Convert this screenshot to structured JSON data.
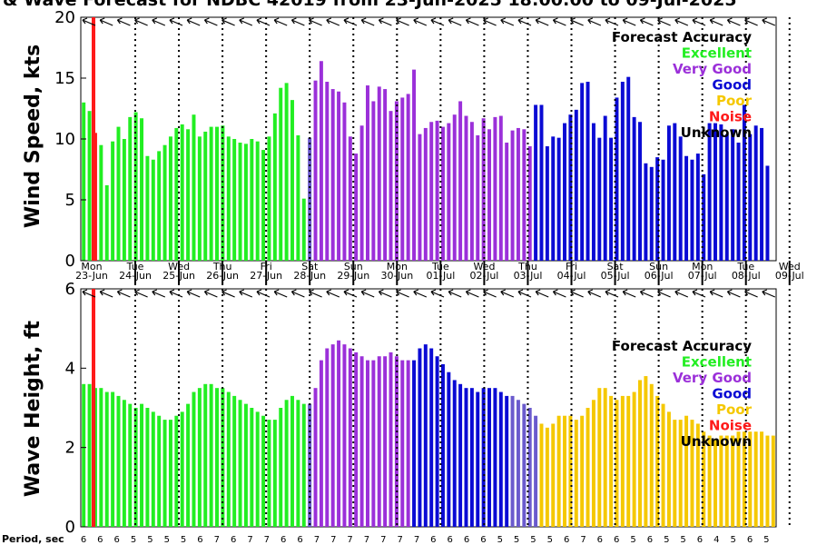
{
  "colors": {
    "excellent": "#22ee22",
    "very_good": "#9b30d9",
    "good": "#0a0ad4",
    "poor": "#f5c800",
    "noise": "#ff1a1a",
    "unknown": "#000000",
    "transition": "#6a5acd"
  },
  "title": "& Wave Forecast for NDBC 42019 from 23-Jun-2025 18:00:00 to 09-Jul-2025",
  "legend": {
    "heading": "Forecast Accuracy",
    "items": [
      {
        "label": "Excellent",
        "color": "#22ee22"
      },
      {
        "label": "Very Good",
        "color": "#9b30d9"
      },
      {
        "label": "Good",
        "color": "#0a0ad4"
      },
      {
        "label": "Poor",
        "color": "#f5c800"
      },
      {
        "label": "Noise",
        "color": "#ff1a1a"
      },
      {
        "label": "Unknown",
        "color": "#000000"
      }
    ]
  },
  "period_label": "Period, sec",
  "chart_data": [
    {
      "type": "bar",
      "title": "& Wave Forecast for NDBC 42019 from 23-Jun-2025 18:00:00 to 09-Jul-2025",
      "ylabel": "Wind Speed, kts",
      "ylim": [
        0,
        20
      ],
      "yticks": [
        "0",
        "5",
        "10",
        "15",
        "20"
      ],
      "grid": "vertical dotted lines at midnight",
      "legend_position": "top-right",
      "day_labels": [
        {
          "dow": "Mon",
          "date": "23-Jun"
        },
        {
          "dow": "Tue",
          "date": "24-Jun"
        },
        {
          "dow": "Wed",
          "date": "25-Jun"
        },
        {
          "dow": "Thu",
          "date": "26-Jun"
        },
        {
          "dow": "Fri",
          "date": "27-Jun"
        },
        {
          "dow": "Sat",
          "date": "28-Jun"
        },
        {
          "dow": "Sun",
          "date": "29-Jun"
        },
        {
          "dow": "Mon",
          "date": "30-Jun"
        },
        {
          "dow": "Tue",
          "date": "01-Jul"
        },
        {
          "dow": "Wed",
          "date": "02-Jul"
        },
        {
          "dow": "Thu",
          "date": "03-Jul"
        },
        {
          "dow": "Fri",
          "date": "04-Jul"
        },
        {
          "dow": "Sat",
          "date": "05-Jul"
        },
        {
          "dow": "Sun",
          "date": "06-Jul"
        },
        {
          "dow": "Mon",
          "date": "07-Jul"
        },
        {
          "dow": "Tue",
          "date": "08-Jul"
        },
        {
          "dow": "Wed",
          "date": "09-Jul"
        }
      ],
      "values": [
        13.0,
        12.3,
        10.5,
        9.5,
        6.2,
        9.8,
        11.0,
        10.0,
        11.8,
        12.2,
        11.7,
        8.6,
        8.3,
        9.0,
        9.5,
        10.2,
        10.9,
        11.2,
        10.8,
        12.0,
        10.2,
        10.6,
        11.0,
        11.0,
        11.1,
        10.2,
        10.0,
        9.7,
        9.6,
        10.0,
        9.8,
        9.1,
        10.2,
        12.1,
        14.2,
        14.6,
        13.2,
        10.3,
        5.1,
        10.1,
        14.8,
        16.4,
        14.7,
        14.1,
        13.9,
        13.0,
        10.2,
        8.8,
        11.1,
        14.4,
        13.1,
        14.3,
        14.1,
        12.3,
        13.1,
        13.4,
        13.7,
        15.7,
        10.4,
        10.9,
        11.4,
        11.5,
        11.0,
        11.3,
        12.0,
        13.1,
        11.9,
        11.4,
        10.3,
        11.7,
        10.8,
        11.8,
        11.9,
        9.7,
        10.7,
        10.9,
        10.8,
        9.4,
        12.8,
        12.8,
        9.4,
        10.2,
        10.1,
        11.3,
        12.0,
        12.4,
        14.6,
        14.7,
        11.3,
        10.1,
        11.9,
        10.1,
        13.4,
        14.7,
        15.1,
        11.8,
        11.4,
        8.0,
        7.7,
        8.5,
        8.3,
        11.1,
        11.3,
        10.2,
        8.6,
        8.3,
        8.8,
        7.1,
        11.3,
        11.3,
        11.2,
        10.4,
        10.8,
        9.7,
        12.8,
        10.4,
        11.1,
        10.9,
        7.8
      ],
      "accuracy": [
        "E",
        "E",
        "N",
        "E",
        "E",
        "E",
        "E",
        "E",
        "E",
        "E",
        "E",
        "E",
        "E",
        "E",
        "E",
        "E",
        "E",
        "E",
        "E",
        "E",
        "E",
        "E",
        "E",
        "E",
        "E",
        "E",
        "E",
        "E",
        "E",
        "E",
        "E",
        "E",
        "E",
        "E",
        "E",
        "E",
        "E",
        "E",
        "E",
        "T",
        "VG",
        "VG",
        "VG",
        "VG",
        "VG",
        "VG",
        "VG",
        "VG",
        "VG",
        "VG",
        "VG",
        "VG",
        "VG",
        "VG",
        "VG",
        "VG",
        "VG",
        "VG",
        "VG",
        "VG",
        "VG",
        "VG",
        "VG",
        "VG",
        "VG",
        "VG",
        "VG",
        "VG",
        "VG",
        "VG",
        "VG",
        "VG",
        "VG",
        "VG",
        "VG",
        "VG",
        "VG",
        "VG",
        "G",
        "G",
        "G",
        "G",
        "G",
        "G",
        "G",
        "G",
        "G",
        "G",
        "G",
        "G",
        "G",
        "G",
        "G",
        "G",
        "G",
        "G",
        "G",
        "G",
        "G",
        "G",
        "G",
        "G",
        "G",
        "G",
        "G",
        "G",
        "G",
        "G",
        "G",
        "G",
        "G",
        "G",
        "G",
        "G",
        "G",
        "G",
        "G",
        "G",
        "G"
      ]
    },
    {
      "type": "bar",
      "ylabel": "Wave Height, ft",
      "ylim": [
        0,
        6
      ],
      "yticks": [
        "0",
        "2",
        "4",
        "6"
      ],
      "grid": "vertical dotted lines at midnight",
      "legend_position": "right",
      "values": [
        3.6,
        3.6,
        3.5,
        3.5,
        3.4,
        3.4,
        3.3,
        3.2,
        3.1,
        3.0,
        3.1,
        3.0,
        2.9,
        2.8,
        2.7,
        2.7,
        2.8,
        2.9,
        3.1,
        3.4,
        3.5,
        3.6,
        3.6,
        3.5,
        3.5,
        3.4,
        3.3,
        3.2,
        3.1,
        3.0,
        2.9,
        2.8,
        2.7,
        2.7,
        3.0,
        3.2,
        3.3,
        3.2,
        3.1,
        3.1,
        3.5,
        4.2,
        4.5,
        4.6,
        4.7,
        4.6,
        4.5,
        4.4,
        4.3,
        4.2,
        4.2,
        4.3,
        4.3,
        4.4,
        4.3,
        4.2,
        4.2,
        4.2,
        4.5,
        4.6,
        4.5,
        4.3,
        4.1,
        3.9,
        3.7,
        3.6,
        3.5,
        3.5,
        3.4,
        3.5,
        3.5,
        3.5,
        3.4,
        3.3,
        3.3,
        3.2,
        3.1,
        3.0,
        2.8,
        2.6,
        2.5,
        2.6,
        2.8,
        2.8,
        2.8,
        2.7,
        2.8,
        3.0,
        3.2,
        3.5,
        3.5,
        3.3,
        3.2,
        3.3,
        3.3,
        3.4,
        3.7,
        3.8,
        3.6,
        3.3,
        3.1,
        2.9,
        2.7,
        2.7,
        2.8,
        2.7,
        2.6,
        2.4,
        2.3,
        2.2,
        2.3,
        2.3,
        2.3,
        2.4,
        2.4,
        2.4,
        2.4,
        2.4,
        2.3,
        2.3
      ],
      "accuracy": [
        "E",
        "E",
        "E",
        "E",
        "E",
        "E",
        "E",
        "E",
        "E",
        "E",
        "E",
        "E",
        "E",
        "E",
        "E",
        "E",
        "E",
        "E",
        "E",
        "E",
        "E",
        "E",
        "E",
        "E",
        "E",
        "E",
        "E",
        "E",
        "E",
        "E",
        "E",
        "E",
        "E",
        "E",
        "E",
        "E",
        "E",
        "E",
        "E",
        "T",
        "VG",
        "VG",
        "VG",
        "VG",
        "VG",
        "VG",
        "VG",
        "VG",
        "VG",
        "VG",
        "VG",
        "VG",
        "VG",
        "VG",
        "VG",
        "VG",
        "VG",
        "G",
        "G",
        "G",
        "G",
        "G",
        "G",
        "G",
        "G",
        "G",
        "G",
        "G",
        "G",
        "G",
        "G",
        "G",
        "G",
        "G",
        "T",
        "T",
        "T",
        "T",
        "T",
        "P",
        "P",
        "P",
        "P",
        "P",
        "P",
        "P",
        "P",
        "P",
        "P",
        "P",
        "P",
        "P",
        "P",
        "P",
        "P",
        "P",
        "P",
        "P",
        "P",
        "P",
        "P",
        "P",
        "P",
        "P",
        "P",
        "P",
        "P",
        "P",
        "P",
        "P",
        "P",
        "P",
        "P",
        "P",
        "P",
        "P",
        "P",
        "P",
        "P",
        "P"
      ]
    }
  ],
  "period": {
    "label": "Period, sec",
    "values": [
      "6",
      "6",
      "6",
      "5",
      "5",
      "5",
      "5",
      "6",
      "7",
      "6",
      "7",
      "7",
      "6",
      "6",
      "7",
      "7",
      "7",
      "7",
      "7",
      "7",
      "7",
      "6",
      "6",
      "6",
      "6",
      "5",
      "5",
      "5",
      "5",
      "6",
      "7",
      "6",
      "6",
      "5",
      "6",
      "5",
      "5",
      "6",
      "4",
      "5",
      "6",
      "5"
    ]
  }
}
